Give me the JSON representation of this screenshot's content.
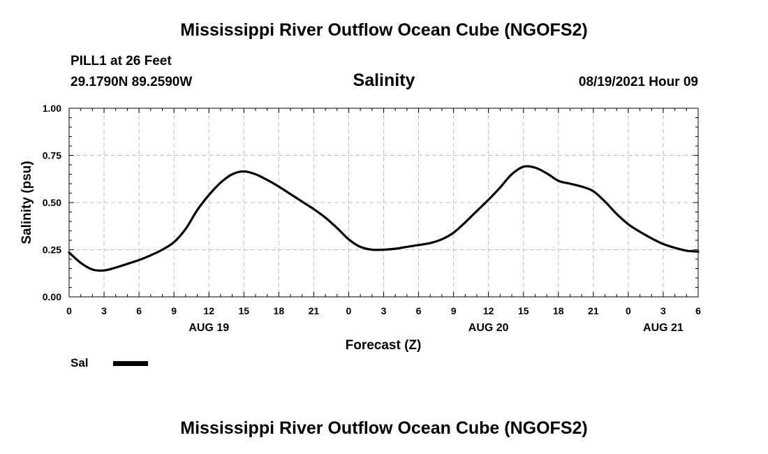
{
  "header": {
    "title": "Mississippi River Outflow Ocean Cube (NGOFS2)",
    "station": "PILL1 at 26 Feet",
    "coords": "29.1790N  89.2590W",
    "timestamp": "08/19/2021 Hour 09"
  },
  "footer": {
    "title": "Mississippi River Outflow Ocean Cube (NGOFS2)"
  },
  "legend": {
    "label": "Sal"
  },
  "chart_data": {
    "type": "line",
    "title": "Salinity",
    "xlabel": "Forecast (Z)",
    "ylabel": "Salinity (psu)",
    "xlim": [
      0,
      54
    ],
    "ylim": [
      0,
      1
    ],
    "x_ticks": [
      {
        "hours": 0,
        "label": "0"
      },
      {
        "hours": 3,
        "label": "3"
      },
      {
        "hours": 6,
        "label": "6"
      },
      {
        "hours": 9,
        "label": "9"
      },
      {
        "hours": 12,
        "label": "12"
      },
      {
        "hours": 15,
        "label": "15"
      },
      {
        "hours": 18,
        "label": "18"
      },
      {
        "hours": 21,
        "label": "21"
      },
      {
        "hours": 24,
        "label": "0"
      },
      {
        "hours": 27,
        "label": "3"
      },
      {
        "hours": 30,
        "label": "6"
      },
      {
        "hours": 33,
        "label": "9"
      },
      {
        "hours": 36,
        "label": "12"
      },
      {
        "hours": 39,
        "label": "15"
      },
      {
        "hours": 42,
        "label": "18"
      },
      {
        "hours": 45,
        "label": "21"
      },
      {
        "hours": 48,
        "label": "0"
      },
      {
        "hours": 51,
        "label": "3"
      },
      {
        "hours": 54,
        "label": "6"
      }
    ],
    "date_labels": [
      {
        "hours": 12,
        "label": "AUG 19"
      },
      {
        "hours": 36,
        "label": "AUG 20"
      },
      {
        "hours": 51,
        "label": "AUG 21"
      }
    ],
    "y_ticks": [
      {
        "value": 0.0,
        "label": "0.00"
      },
      {
        "value": 0.25,
        "label": "0.25"
      },
      {
        "value": 0.5,
        "label": "0.50"
      },
      {
        "value": 0.75,
        "label": "0.75"
      },
      {
        "value": 1.0,
        "label": "1.00"
      }
    ],
    "grid": true,
    "series": [
      {
        "name": "Sal",
        "x": [
          0,
          1,
          2,
          3,
          4,
          5,
          6,
          7,
          8,
          9,
          10,
          11,
          12,
          13,
          14,
          15,
          16,
          17,
          18,
          19,
          20,
          21,
          22,
          23,
          24,
          25,
          26,
          27,
          28,
          29,
          30,
          31,
          32,
          33,
          34,
          35,
          36,
          37,
          38,
          39,
          40,
          41,
          42,
          43,
          44,
          45,
          46,
          47,
          48,
          49,
          50,
          51,
          52,
          53,
          54
        ],
        "values": [
          0.235,
          0.18,
          0.145,
          0.14,
          0.155,
          0.175,
          0.195,
          0.22,
          0.25,
          0.29,
          0.36,
          0.46,
          0.54,
          0.605,
          0.65,
          0.665,
          0.65,
          0.62,
          0.585,
          0.545,
          0.505,
          0.465,
          0.42,
          0.365,
          0.305,
          0.265,
          0.25,
          0.25,
          0.255,
          0.265,
          0.275,
          0.285,
          0.305,
          0.34,
          0.395,
          0.455,
          0.515,
          0.58,
          0.65,
          0.69,
          0.685,
          0.655,
          0.615,
          0.6,
          0.585,
          0.56,
          0.505,
          0.44,
          0.385,
          0.345,
          0.31,
          0.28,
          0.26,
          0.245,
          0.24
        ]
      }
    ]
  }
}
